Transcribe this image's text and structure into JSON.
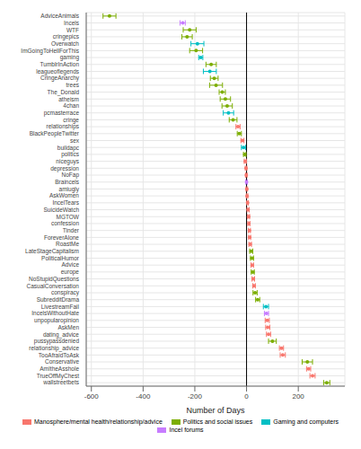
{
  "chart_data": {
    "type": "scatter",
    "x_label": "Number of Days",
    "xlim": [
      -620,
      380
    ],
    "xticks": [
      -600,
      -400,
      -200,
      0,
      200
    ],
    "grid": true,
    "legend": "bottom",
    "marker": "circle",
    "categories": [
      "AdviceAnimals",
      "Incels",
      "WTF",
      "cringepics",
      "Overwatch",
      "ImGoingToHellForThis",
      "gaming",
      "TumblrInAction",
      "leagueoflegends",
      "CringeAnarchy",
      "trees",
      "The_Donald",
      "atheism",
      "4chan",
      "pcmasterrace",
      "cringe",
      "relationships",
      "BlackPeopleTwitter",
      "sex",
      "buildapc",
      "politics",
      "niceguys",
      "depression",
      "NoFap",
      "Braincels",
      "amiugly",
      "AskWomen",
      "IncelTears",
      "SuicideWatch",
      "MGTOW",
      "confession",
      "Tinder",
      "ForeverAlone",
      "RoastMe",
      "LateStageCapitalism",
      "PoliticalHumor",
      "Advice",
      "europe",
      "NoStupidQuestions",
      "CasualConversation",
      "conspiracy",
      "SubredditDrama",
      "LivestreamFail",
      "IncelsWithoutHate",
      "unpopularopinion",
      "AskMen",
      "dating_advice",
      "pussypassdenied",
      "relationship_advice",
      "TooAfraidToAsk",
      "Conservative",
      "AmItheAsshole",
      "TrueOffMyChest",
      "wallstreetbets"
    ],
    "series": [
      {
        "name": "Manosphere/mental health/relationship/advice",
        "color": "#F8766D",
        "values": [
          null,
          null,
          null,
          null,
          null,
          null,
          null,
          null,
          null,
          null,
          null,
          null,
          null,
          null,
          null,
          null,
          -33,
          null,
          -16,
          null,
          null,
          -5,
          -2,
          -1,
          null,
          1,
          2,
          4,
          6,
          8,
          9,
          11,
          12,
          14,
          null,
          null,
          22,
          null,
          26,
          29,
          null,
          null,
          null,
          null,
          80,
          82,
          85,
          null,
          135,
          140,
          null,
          240,
          255,
          null
        ],
        "errors": [
          null,
          null,
          null,
          null,
          null,
          null,
          null,
          null,
          null,
          null,
          null,
          null,
          null,
          null,
          null,
          null,
          8,
          null,
          6,
          null,
          null,
          4,
          3,
          3,
          null,
          3,
          3,
          3,
          4,
          4,
          4,
          4,
          4,
          5,
          null,
          null,
          5,
          null,
          5,
          5,
          null,
          null,
          null,
          null,
          8,
          8,
          8,
          null,
          8,
          10,
          null,
          8,
          10,
          null
        ]
      },
      {
        "name": "Politics and social issues",
        "color": "#7CAE00",
        "values": [
          -530,
          null,
          -220,
          -230,
          null,
          -195,
          null,
          -137,
          null,
          -125,
          -118,
          -94,
          -82,
          -75,
          null,
          -52,
          null,
          -28,
          null,
          null,
          -7,
          null,
          null,
          null,
          null,
          null,
          null,
          null,
          null,
          null,
          null,
          null,
          null,
          null,
          18,
          21,
          null,
          24,
          null,
          null,
          33,
          43,
          null,
          null,
          null,
          null,
          null,
          100,
          null,
          null,
          235,
          null,
          null,
          310
        ],
        "errors": [
          25,
          null,
          25,
          20,
          null,
          25,
          null,
          20,
          null,
          15,
          25,
          12,
          20,
          20,
          null,
          15,
          null,
          8,
          null,
          null,
          5,
          null,
          null,
          null,
          null,
          null,
          null,
          null,
          null,
          null,
          null,
          null,
          null,
          null,
          6,
          6,
          null,
          6,
          null,
          null,
          8,
          8,
          null,
          null,
          null,
          null,
          null,
          15,
          null,
          null,
          20,
          null,
          null,
          12
        ]
      },
      {
        "name": "Gaming and computers",
        "color": "#00BFC4",
        "values": [
          null,
          null,
          null,
          null,
          -190,
          null,
          -177,
          null,
          -142,
          null,
          null,
          null,
          null,
          null,
          -70,
          null,
          null,
          null,
          null,
          -12,
          null,
          null,
          null,
          null,
          null,
          null,
          null,
          null,
          null,
          null,
          null,
          null,
          null,
          null,
          null,
          null,
          null,
          null,
          null,
          null,
          null,
          null,
          75,
          null,
          null,
          null,
          null,
          null,
          null,
          null,
          null,
          null,
          null,
          null
        ],
        "errors": [
          null,
          null,
          null,
          null,
          25,
          null,
          8,
          null,
          25,
          null,
          null,
          null,
          null,
          null,
          20,
          null,
          null,
          null,
          null,
          8,
          null,
          null,
          null,
          null,
          null,
          null,
          null,
          null,
          null,
          null,
          null,
          null,
          null,
          null,
          null,
          null,
          null,
          null,
          null,
          null,
          null,
          null,
          10,
          null,
          null,
          null,
          null,
          null,
          null,
          null,
          null,
          null,
          null,
          null
        ]
      },
      {
        "name": "Incel forums",
        "color": "#C77CFF",
        "values": [
          null,
          -247,
          null,
          null,
          null,
          null,
          null,
          null,
          null,
          null,
          null,
          null,
          null,
          null,
          null,
          null,
          null,
          null,
          null,
          null,
          null,
          null,
          null,
          null,
          0,
          null,
          null,
          null,
          null,
          null,
          null,
          null,
          null,
          null,
          null,
          null,
          null,
          null,
          null,
          null,
          null,
          null,
          null,
          77,
          null,
          null,
          null,
          null,
          null,
          null,
          null,
          null,
          null,
          null
        ],
        "errors": [
          null,
          10,
          null,
          null,
          null,
          null,
          null,
          null,
          null,
          null,
          null,
          null,
          null,
          null,
          null,
          null,
          null,
          null,
          null,
          null,
          null,
          null,
          null,
          null,
          3,
          null,
          null,
          null,
          null,
          null,
          null,
          null,
          null,
          null,
          null,
          null,
          null,
          null,
          null,
          null,
          null,
          null,
          null,
          8,
          null,
          null,
          null,
          null,
          null,
          null,
          null,
          null,
          null,
          null
        ]
      }
    ]
  }
}
